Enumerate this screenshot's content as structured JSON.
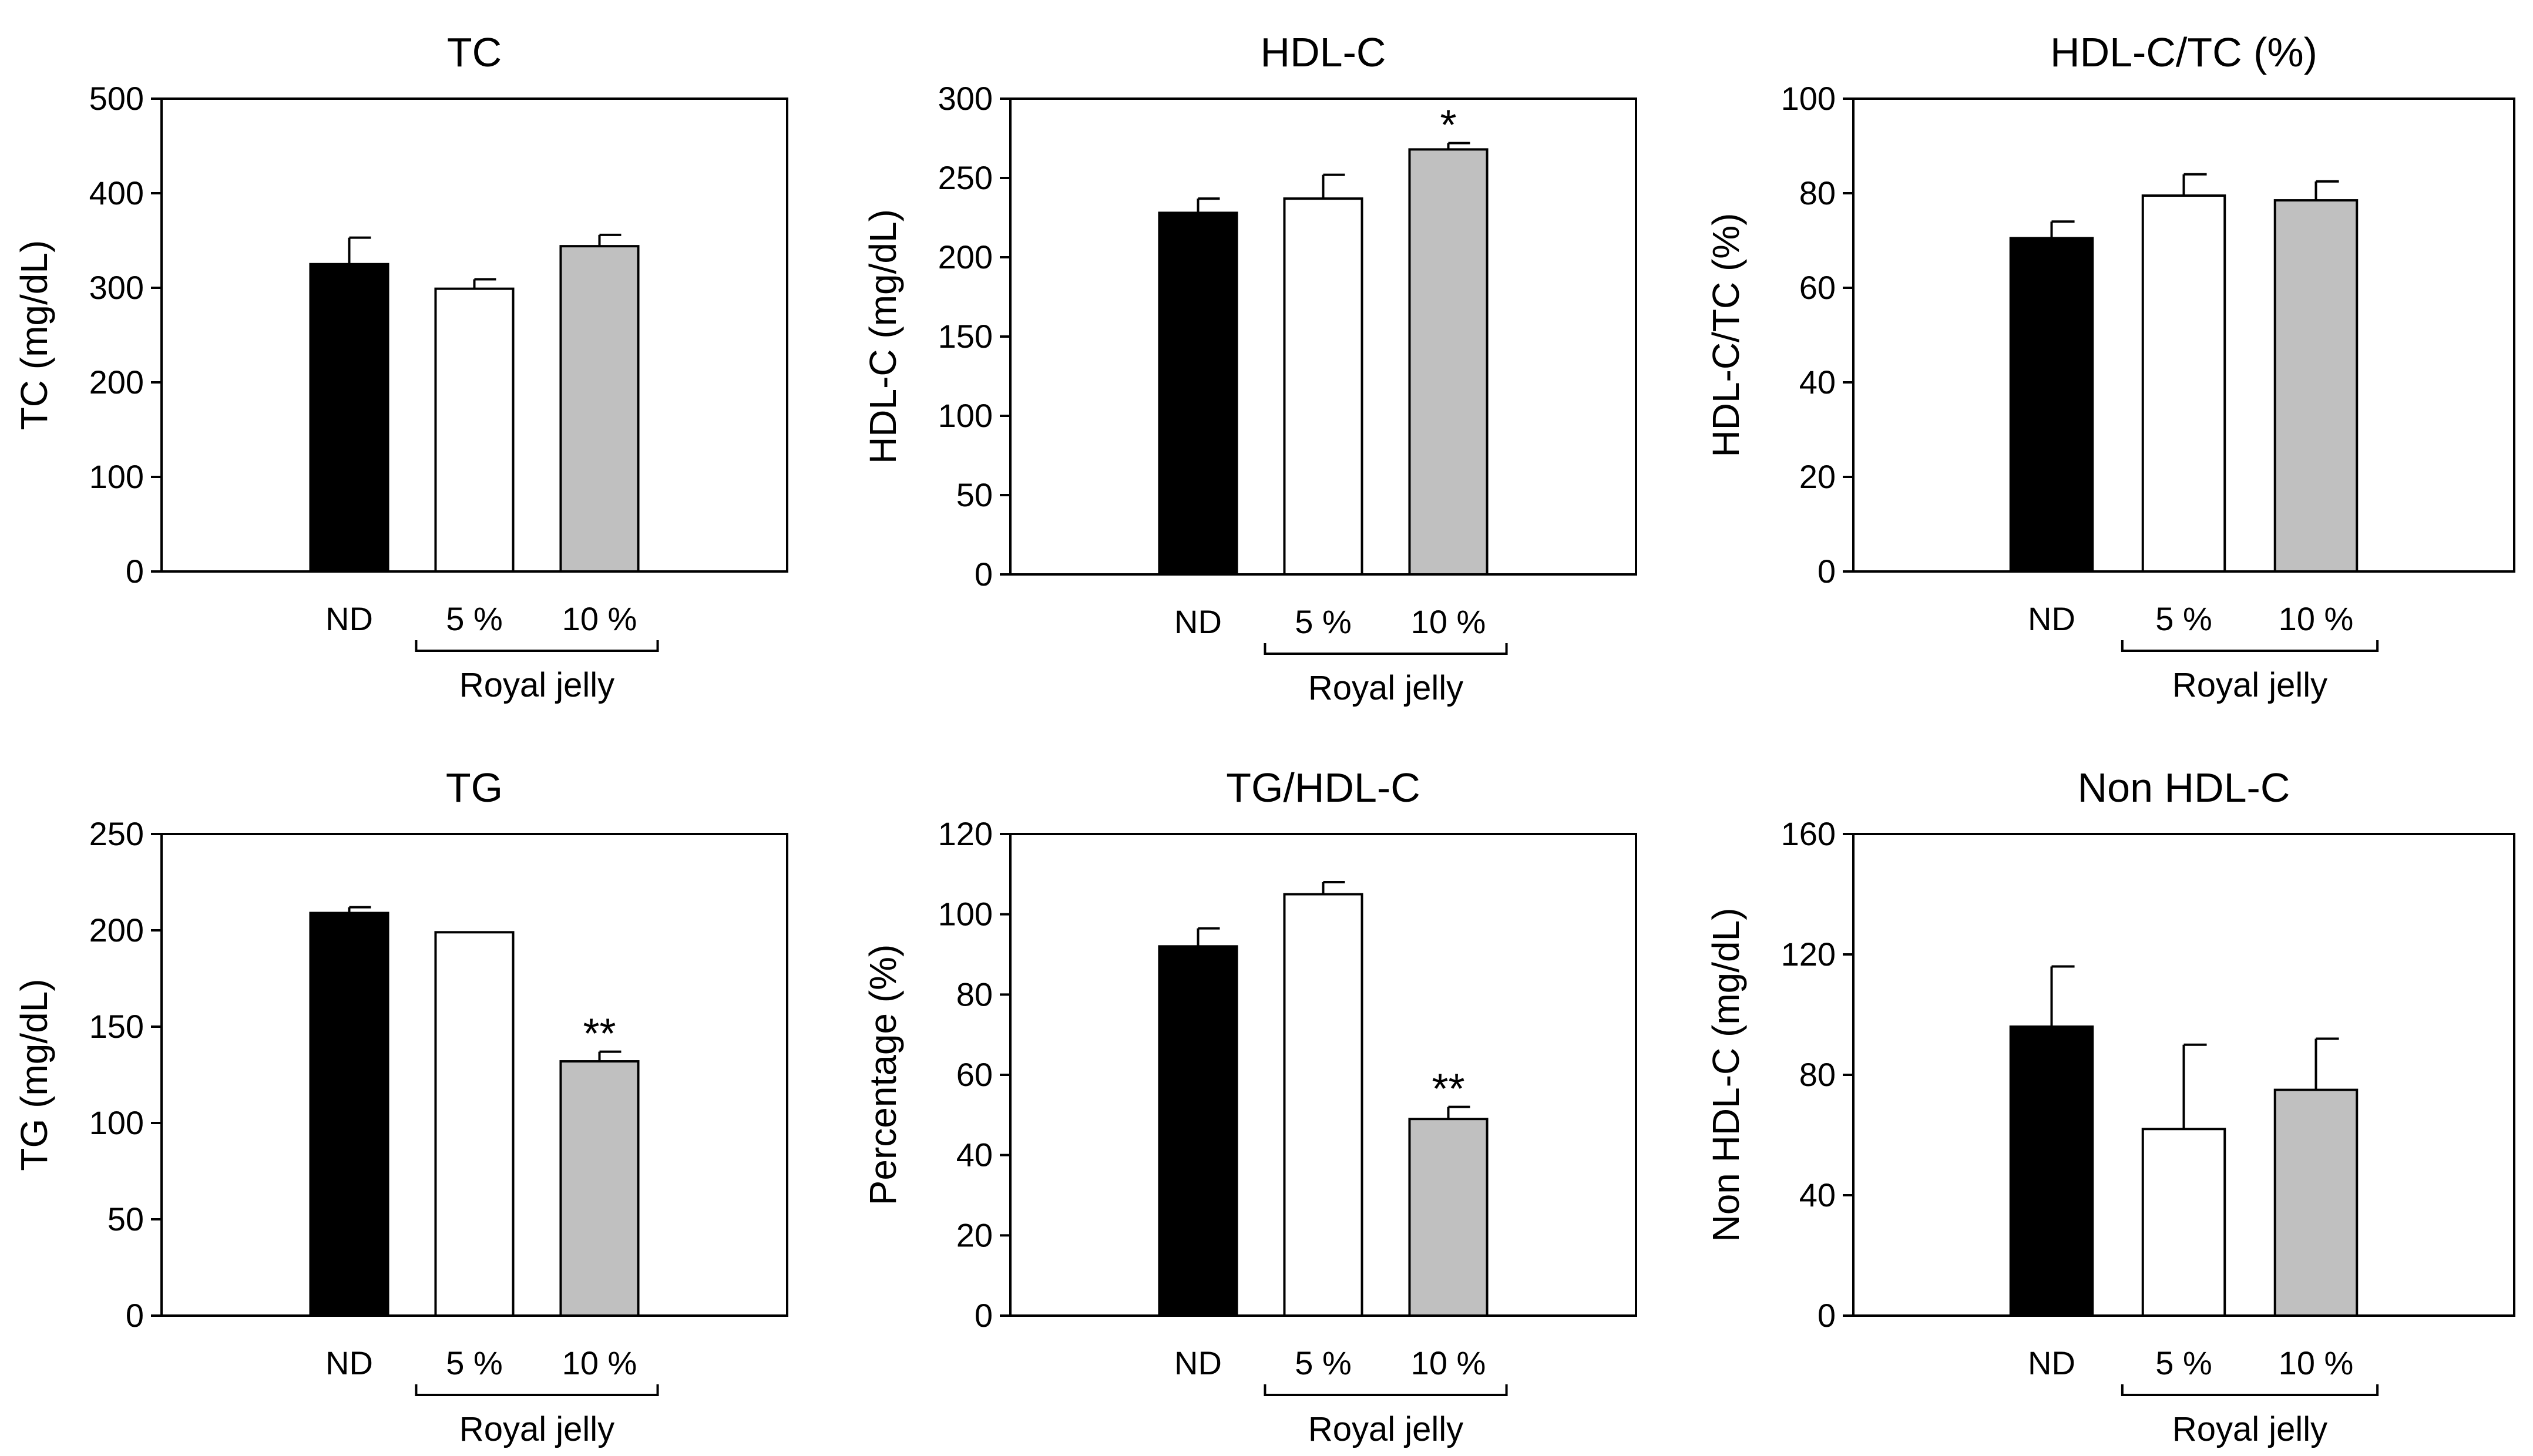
{
  "chart_data": [
    {
      "type": "bar",
      "title": "TC",
      "ylabel": "TC (mg/dL)",
      "xlabel": "",
      "categories": [
        "ND",
        "5 %",
        "10 %"
      ],
      "values": [
        325,
        299,
        344
      ],
      "errors": [
        28,
        10,
        12
      ],
      "ylim": [
        0,
        500
      ],
      "yticks": [
        0,
        100,
        200,
        300,
        400,
        500
      ],
      "ytick_labels": [
        "0",
        "100",
        "200",
        "300",
        "400",
        "500"
      ],
      "bar_colors": [
        "#000000",
        "#ffffff",
        "#c0c0c0"
      ],
      "significance": [
        "",
        "",
        ""
      ],
      "group_label": "Royal jelly"
    },
    {
      "type": "bar",
      "title": "HDL-C",
      "ylabel": "HDL-C (mg/dL)",
      "xlabel": "",
      "categories": [
        "ND",
        "5 %",
        "10 %"
      ],
      "values": [
        228,
        237,
        268
      ],
      "errors": [
        9,
        15,
        4
      ],
      "ylim": [
        0,
        300
      ],
      "yticks": [
        0,
        50,
        100,
        150,
        200,
        250,
        300
      ],
      "ytick_labels": [
        "0",
        "50",
        "100",
        "150",
        "200",
        "250",
        "300"
      ],
      "bar_colors": [
        "#000000",
        "#ffffff",
        "#c0c0c0"
      ],
      "significance": [
        "",
        "",
        "*"
      ],
      "group_label": "Royal jelly"
    },
    {
      "type": "bar",
      "title": "HDL-C/TC (%)",
      "ylabel": "HDL-C/TC (%)",
      "xlabel": "",
      "categories": [
        "ND",
        "5 %",
        "10 %"
      ],
      "values": [
        70.5,
        79.5,
        78.5
      ],
      "errors": [
        3.5,
        4.5,
        4
      ],
      "ylim": [
        0,
        100
      ],
      "yticks": [
        0,
        20,
        40,
        60,
        80,
        100
      ],
      "ytick_labels": [
        "0",
        "20",
        "40",
        "60",
        "80",
        "100"
      ],
      "bar_colors": [
        "#000000",
        "#ffffff",
        "#c0c0c0"
      ],
      "significance": [
        "",
        "",
        ""
      ],
      "group_label": "Royal jelly"
    },
    {
      "type": "bar",
      "title": "TG",
      "ylabel": "TG (mg/dL)",
      "xlabel": "",
      "categories": [
        "ND",
        "5 %",
        "10 %"
      ],
      "values": [
        209,
        199,
        132
      ],
      "errors": [
        3,
        0,
        5
      ],
      "ylim": [
        0,
        250
      ],
      "yticks": [
        0,
        50,
        100,
        150,
        200,
        250
      ],
      "ytick_labels": [
        "0",
        "50",
        "100",
        "150",
        "200",
        "250"
      ],
      "bar_colors": [
        "#000000",
        "#ffffff",
        "#c0c0c0"
      ],
      "significance": [
        "",
        "",
        "**"
      ],
      "group_label": "Royal jelly"
    },
    {
      "type": "bar",
      "title": "TG/HDL-C",
      "ylabel": "Percentage (%)",
      "xlabel": "",
      "categories": [
        "ND",
        "5 %",
        "10 %"
      ],
      "values": [
        92,
        105,
        49
      ],
      "errors": [
        4.5,
        3,
        3
      ],
      "ylim": [
        0,
        120
      ],
      "yticks": [
        0,
        20,
        40,
        60,
        80,
        100,
        120
      ],
      "ytick_labels": [
        "0",
        "20",
        "40",
        "60",
        "80",
        "100",
        "120"
      ],
      "bar_colors": [
        "#000000",
        "#ffffff",
        "#c0c0c0"
      ],
      "significance": [
        "",
        "",
        "**"
      ],
      "group_label": "Royal jelly"
    },
    {
      "type": "bar",
      "title": "Non HDL-C",
      "ylabel": "Non HDL-C (mg/dL)",
      "xlabel": "",
      "categories": [
        "ND",
        "5 %",
        "10 %"
      ],
      "values": [
        96,
        62,
        75
      ],
      "errors": [
        20,
        28,
        17
      ],
      "ylim": [
        0,
        160
      ],
      "yticks": [
        0,
        40,
        80,
        120,
        160
      ],
      "ytick_labels": [
        "0",
        "40",
        "80",
        "120",
        "160"
      ],
      "bar_colors": [
        "#000000",
        "#ffffff",
        "#c0c0c0"
      ],
      "significance": [
        "",
        "",
        ""
      ],
      "group_label": "Royal jelly"
    }
  ]
}
